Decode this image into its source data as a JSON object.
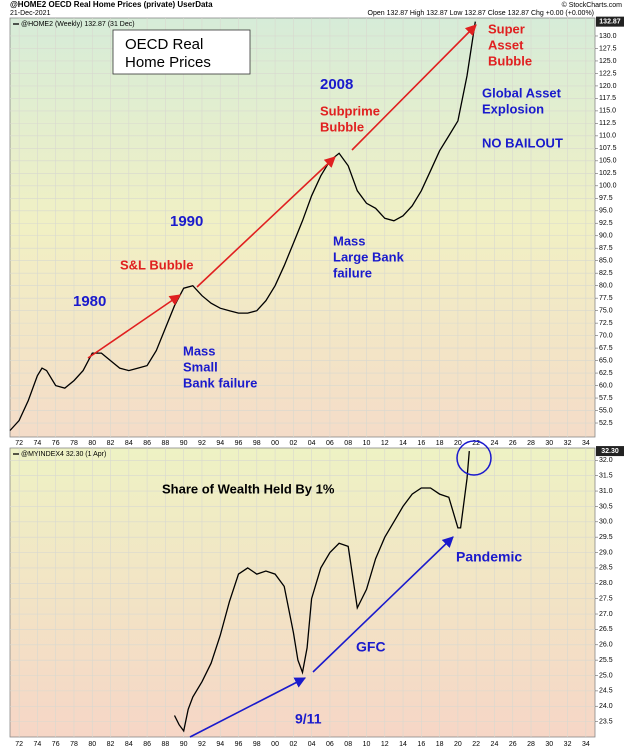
{
  "header": {
    "title": "@HOME2 OECD Real Home Prices (private) UserData",
    "date": "21-Dec-2021",
    "quote": "Open 132.87 High 132.87 Low 132.87 Close 132.87 Chg +0.00 (+0.00%)",
    "credit": "© StockCharts.com"
  },
  "chart_data": [
    {
      "type": "line",
      "legend_label": "@HOME2 (Weekly) 132.87 (31 Dec)",
      "color": "#000000",
      "grid": true,
      "last_value": 132.87,
      "x": [
        1971,
        1972,
        1973,
        1974,
        1974.5,
        1975,
        1976,
        1977,
        1978,
        1979,
        1980,
        1981,
        1982,
        1983,
        1984,
        1985,
        1986,
        1987,
        1988,
        1989,
        1990,
        1991,
        1992,
        1993,
        1994,
        1995,
        1996,
        1997,
        1998,
        1999,
        2000,
        2001,
        2002,
        2003,
        2004,
        2005,
        2006,
        2007,
        2008,
        2009,
        2010,
        2011,
        2012,
        2013,
        2014,
        2015,
        2016,
        2017,
        2018,
        2019,
        2020,
        2021,
        2021.9
      ],
      "values": [
        51,
        53,
        57,
        62,
        63.5,
        63,
        60,
        59.5,
        61,
        63,
        66.5,
        66.5,
        65,
        63.5,
        63,
        63.5,
        64,
        67,
        71.5,
        76,
        79.5,
        80,
        78,
        76.5,
        75.5,
        75,
        74.5,
        74.5,
        75,
        77,
        80,
        84,
        88.5,
        93,
        98,
        102,
        105,
        106.5,
        104,
        99,
        96.5,
        95.5,
        93.5,
        93,
        94,
        96,
        99,
        103,
        107,
        110,
        113,
        122,
        132.87
      ],
      "xlim": [
        1971,
        2035
      ],
      "xticks": [
        {
          "value": 1972,
          "label": "72"
        },
        {
          "value": 1974,
          "label": "74"
        },
        {
          "value": 1976,
          "label": "76"
        },
        {
          "value": 1978,
          "label": "78"
        },
        {
          "value": 1980,
          "label": "80"
        },
        {
          "value": 1982,
          "label": "82"
        },
        {
          "value": 1984,
          "label": "84"
        },
        {
          "value": 1986,
          "label": "86"
        },
        {
          "value": 1988,
          "label": "88"
        },
        {
          "value": 1990,
          "label": "90"
        },
        {
          "value": 1992,
          "label": "92"
        },
        {
          "value": 1994,
          "label": "94"
        },
        {
          "value": 1996,
          "label": "96"
        },
        {
          "value": 1998,
          "label": "98"
        },
        {
          "value": 2000,
          "label": "00"
        },
        {
          "value": 2002,
          "label": "02"
        },
        {
          "value": 2004,
          "label": "04"
        },
        {
          "value": 2006,
          "label": "06"
        },
        {
          "value": 2008,
          "label": "08"
        },
        {
          "value": 2010,
          "label": "10"
        },
        {
          "value": 2012,
          "label": "12"
        },
        {
          "value": 2014,
          "label": "14"
        },
        {
          "value": 2016,
          "label": "16"
        },
        {
          "value": 2018,
          "label": "18"
        },
        {
          "value": 2020,
          "label": "20"
        },
        {
          "value": 2022,
          "label": "22"
        },
        {
          "value": 2024,
          "label": "24"
        },
        {
          "value": 2026,
          "label": "26"
        },
        {
          "value": 2028,
          "label": "28"
        },
        {
          "value": 2030,
          "label": "30"
        },
        {
          "value": 2032,
          "label": "32"
        },
        {
          "value": 2034,
          "label": "34"
        }
      ],
      "ylim": [
        49.7,
        133.6
      ],
      "yticks": [
        52.5,
        {
          "value": 55,
          "label": "55.0"
        },
        57.5,
        {
          "value": 60,
          "label": "60.0"
        },
        62.5,
        {
          "value": 65,
          "label": "65.0"
        },
        67.5,
        {
          "value": 70,
          "label": "70.0"
        },
        72.5,
        {
          "value": 75,
          "label": "75.0"
        },
        77.5,
        {
          "value": 80,
          "label": "80.0"
        },
        82.5,
        {
          "value": 85,
          "label": "85.0"
        },
        87.5,
        {
          "value": 90,
          "label": "90.0"
        },
        92.5,
        {
          "value": 95,
          "label": "95.0"
        },
        97.5,
        {
          "value": 100,
          "label": "100.0"
        },
        102.5,
        {
          "value": 105,
          "label": "105.0"
        },
        107.5,
        {
          "value": 110,
          "label": "110.0"
        },
        112.5,
        {
          "value": 115,
          "label": "115.0"
        },
        117.5,
        {
          "value": 120,
          "label": "120.0"
        },
        122.5,
        {
          "value": 125,
          "label": "125.0"
        },
        127.5,
        {
          "value": 130,
          "label": "130.0"
        }
      ],
      "annotations": [
        {
          "lines": [
            "OECD Real",
            "Home Prices"
          ],
          "color": "#000000"
        },
        {
          "lines": [
            "1980"
          ],
          "color": "#1a1acc"
        },
        {
          "lines": [
            "S&L Bubble"
          ],
          "color": "#e02020"
        },
        {
          "lines": [
            "1990"
          ],
          "color": "#1a1acc"
        },
        {
          "lines": [
            "Mass",
            "Small",
            "Bank failure"
          ],
          "color": "#1a1acc"
        },
        {
          "lines": [
            "2008"
          ],
          "color": "#1a1acc"
        },
        {
          "lines": [
            "Subprime",
            "Bubble"
          ],
          "color": "#e02020"
        },
        {
          "lines": [
            "Mass",
            "Large Bank",
            "failure"
          ],
          "color": "#1a1acc"
        },
        {
          "lines": [
            "Super",
            "Asset",
            "Bubble"
          ],
          "color": "#e02020"
        },
        {
          "lines": [
            "Global Asset",
            "Explosion"
          ],
          "color": "#1a1acc"
        },
        {
          "lines": [
            "NO BAILOUT"
          ],
          "color": "#1a1acc"
        }
      ]
    },
    {
      "type": "line",
      "legend_label": "@MYINDEX4 32.30 (1 Apr)",
      "color": "#000000",
      "grid": true,
      "last_value": 32.3,
      "last_value_label": "32.30",
      "x": [
        1989,
        1989.5,
        1990,
        1990.5,
        1991,
        1992,
        1993,
        1994,
        1995,
        1996,
        1997,
        1998,
        1999,
        2000,
        2001,
        2002,
        2002.5,
        2003,
        2003.5,
        2004,
        2005,
        2006,
        2007,
        2008,
        2009,
        2010,
        2011,
        2012,
        2013,
        2014,
        2015,
        2016,
        2017,
        2018,
        2019,
        2020,
        2020.3,
        2021,
        2021.25
      ],
      "values": [
        23.7,
        23.4,
        23.2,
        23.9,
        24.3,
        24.8,
        25.4,
        26.3,
        27.4,
        28.3,
        28.5,
        28.3,
        28.4,
        28.3,
        27.9,
        26.4,
        25.5,
        25.1,
        25.9,
        27.5,
        28.5,
        29.0,
        29.3,
        29.2,
        27.2,
        27.8,
        28.8,
        29.5,
        30.0,
        30.5,
        30.9,
        31.1,
        31.1,
        30.9,
        30.8,
        29.8,
        29.8,
        31.4,
        32.3
      ],
      "xlim": [
        1971,
        2035
      ],
      "xticks": [
        {
          "value": 1972,
          "label": "72"
        },
        {
          "value": 1974,
          "label": "74"
        },
        {
          "value": 1976,
          "label": "76"
        },
        {
          "value": 1978,
          "label": "78"
        },
        {
          "value": 1980,
          "label": "80"
        },
        {
          "value": 1982,
          "label": "82"
        },
        {
          "value": 1984,
          "label": "84"
        },
        {
          "value": 1986,
          "label": "86"
        },
        {
          "value": 1988,
          "label": "88"
        },
        {
          "value": 1990,
          "label": "90"
        },
        {
          "value": 1992,
          "label": "92"
        },
        {
          "value": 1994,
          "label": "94"
        },
        {
          "value": 1996,
          "label": "96"
        },
        {
          "value": 1998,
          "label": "98"
        },
        {
          "value": 2000,
          "label": "00"
        },
        {
          "value": 2002,
          "label": "02"
        },
        {
          "value": 2004,
          "label": "04"
        },
        {
          "value": 2006,
          "label": "06"
        },
        {
          "value": 2008,
          "label": "08"
        },
        {
          "value": 2010,
          "label": "10"
        },
        {
          "value": 2012,
          "label": "12"
        },
        {
          "value": 2014,
          "label": "14"
        },
        {
          "value": 2016,
          "label": "16"
        },
        {
          "value": 2018,
          "label": "18"
        },
        {
          "value": 2020,
          "label": "20"
        },
        {
          "value": 2022,
          "label": "22"
        },
        {
          "value": 2024,
          "label": "24"
        },
        {
          "value": 2026,
          "label": "26"
        },
        {
          "value": 2028,
          "label": "28"
        },
        {
          "value": 2030,
          "label": "30"
        },
        {
          "value": 2032,
          "label": "32"
        },
        {
          "value": 2034,
          "label": "34"
        }
      ],
      "ylim": [
        23,
        32.4
      ],
      "yticks": [
        23.5,
        {
          "value": 24,
          "label": "24.0"
        },
        24.5,
        {
          "value": 25,
          "label": "25.0"
        },
        25.5,
        {
          "value": 26,
          "label": "26.0"
        },
        26.5,
        {
          "value": 27,
          "label": "27.0"
        },
        27.5,
        {
          "value": 28,
          "label": "28.0"
        },
        28.5,
        {
          "value": 29,
          "label": "29.0"
        },
        29.5,
        {
          "value": 30,
          "label": "30.0"
        },
        30.5,
        {
          "value": 31,
          "label": "31.0"
        },
        31.5,
        {
          "value": 32,
          "label": "32.0"
        }
      ],
      "annotations": [
        {
          "lines": [
            "Share of Wealth Held By 1%"
          ],
          "color": "#000000"
        },
        {
          "lines": [
            "Pandemic"
          ],
          "color": "#1a1acc"
        },
        {
          "lines": [
            "GFC"
          ],
          "color": "#1a1acc"
        },
        {
          "lines": [
            "9/11"
          ],
          "color": "#1a1acc"
        }
      ]
    }
  ]
}
